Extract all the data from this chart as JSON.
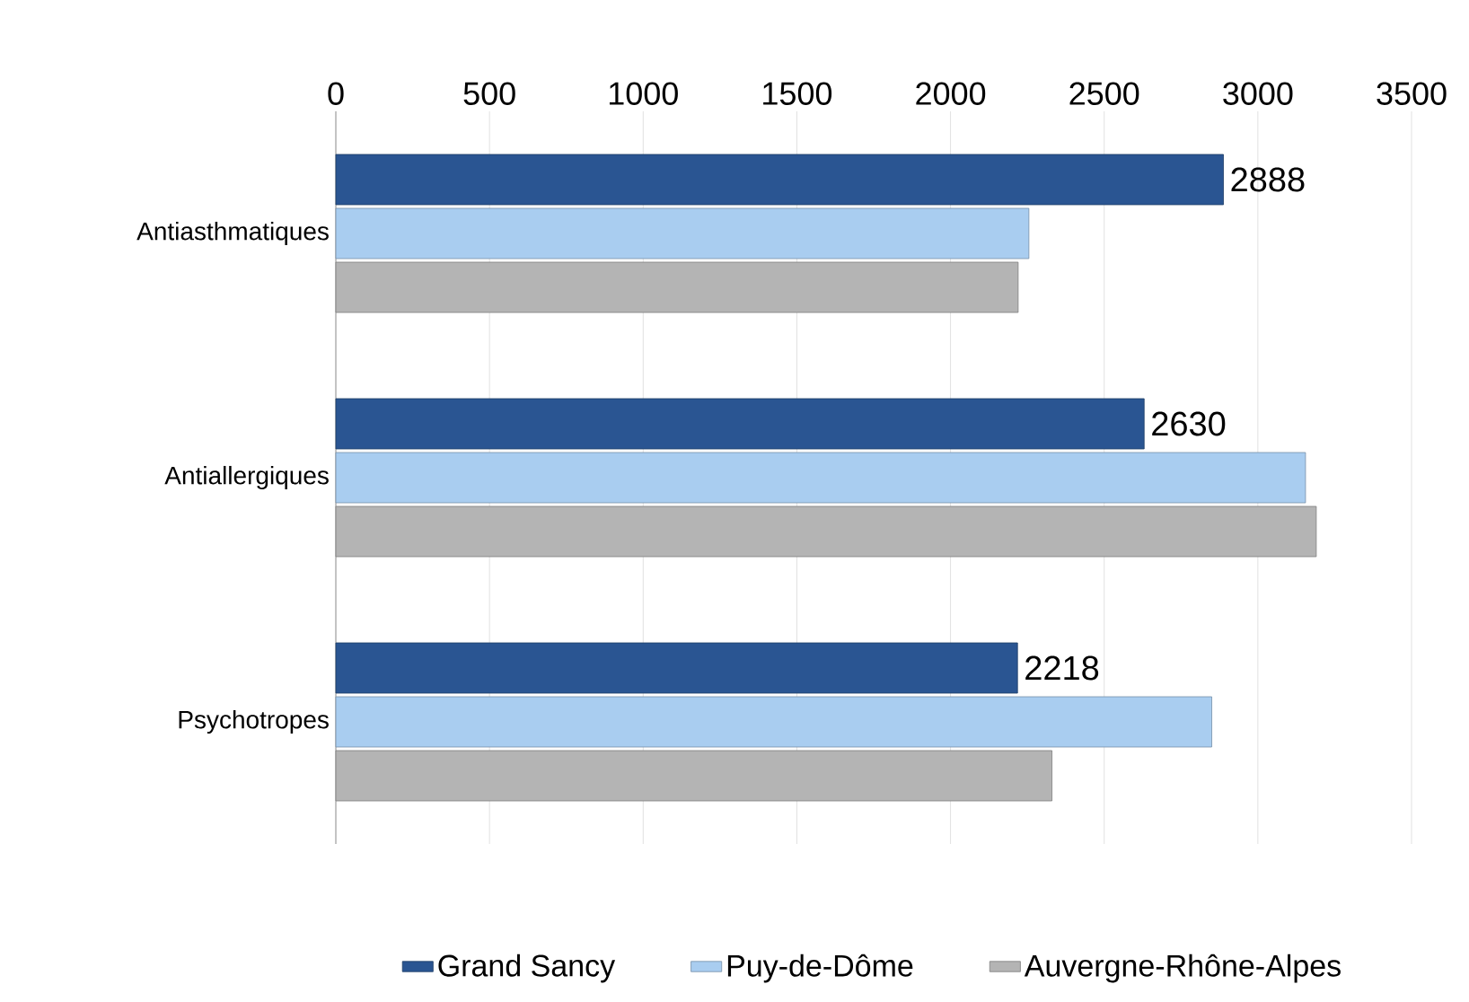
{
  "chart_data": {
    "type": "bar",
    "orientation": "horizontal",
    "categories": [
      "Antiasthmatiques",
      "Antiallergiques",
      "Psychotropes"
    ],
    "series": [
      {
        "name": "Grand Sancy",
        "color": "#2a5592",
        "values": [
          2888,
          2630,
          2218
        ],
        "value_labels": [
          "2888",
          "2630",
          "2218"
        ]
      },
      {
        "name": "Puy-de-Dôme",
        "color": "#a9cdf0",
        "values": [
          2255,
          3155,
          2850
        ]
      },
      {
        "name": "Auvergne-Rhône-Alpes",
        "color": "#b4b4b4",
        "values": [
          2220,
          3190,
          2330
        ]
      }
    ],
    "xlim": [
      0,
      3500
    ],
    "xticks": [
      0,
      500,
      1000,
      1500,
      2000,
      2500,
      3000,
      3500
    ],
    "grid": "x",
    "legend": "bottom"
  }
}
